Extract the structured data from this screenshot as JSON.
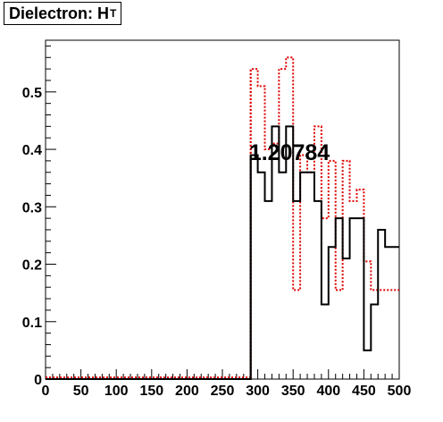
{
  "title": {
    "main": "Dielectron: H",
    "sub": "T"
  },
  "annotation": "1.20784",
  "colors": {
    "black_series": "#000000",
    "red_series": "#dd0000",
    "axes": "#000000",
    "background": "#ffffff"
  },
  "chart_data": {
    "type": "histogram",
    "title": "Dielectron: H_T",
    "xlabel": "",
    "ylabel": "",
    "xlim": [
      0,
      500
    ],
    "ylim": [
      0,
      0.59
    ],
    "grid": false,
    "bin_width": 10,
    "x_ticks": [
      0,
      50,
      100,
      150,
      200,
      250,
      300,
      350,
      400,
      450,
      500
    ],
    "x_tick_labels": [
      "0",
      "50",
      "100",
      "150",
      "200",
      "250",
      "300",
      "350",
      "400",
      "450",
      "500"
    ],
    "y_ticks": [
      0,
      0.1,
      0.2,
      0.3,
      0.4,
      0.5
    ],
    "y_tick_labels": [
      "0",
      "0.1",
      "0.2",
      "0.3",
      "0.4",
      "0.5"
    ],
    "annotations": [
      {
        "text": "1.20784",
        "x": 333,
        "y": 0.4
      }
    ],
    "series": [
      {
        "style": "solid",
        "color": "#000000",
        "bin_edges": [
          0,
          10,
          20,
          30,
          40,
          50,
          60,
          70,
          80,
          90,
          100,
          110,
          120,
          130,
          140,
          150,
          160,
          170,
          180,
          190,
          200,
          210,
          220,
          230,
          240,
          250,
          260,
          270,
          280,
          290,
          300,
          310,
          320,
          330,
          340,
          350,
          360,
          370,
          380,
          390,
          400,
          410,
          420,
          430,
          440,
          450,
          460,
          470,
          480,
          490,
          500
        ],
        "values": [
          0,
          0,
          0,
          0,
          0,
          0,
          0,
          0,
          0,
          0,
          0,
          0,
          0,
          0,
          0,
          0,
          0,
          0,
          0,
          0,
          0,
          0,
          0,
          0,
          0,
          0,
          0,
          0,
          0,
          0.39,
          0.36,
          0.31,
          0.44,
          0.36,
          0.44,
          0.31,
          0.36,
          0.36,
          0.31,
          0.13,
          0.23,
          0.28,
          0.21,
          0.28,
          0.28,
          0.05,
          0.13,
          0.26,
          0.23,
          0.23
        ]
      },
      {
        "style": "dotted",
        "color": "#dd0000",
        "bin_edges": [
          0,
          10,
          20,
          30,
          40,
          50,
          60,
          70,
          80,
          90,
          100,
          110,
          120,
          130,
          140,
          150,
          160,
          170,
          180,
          190,
          200,
          210,
          220,
          230,
          240,
          250,
          260,
          270,
          280,
          290,
          300,
          310,
          320,
          330,
          340,
          350,
          360,
          370,
          380,
          390,
          400,
          410,
          420,
          430,
          440,
          450,
          460,
          470,
          480,
          490,
          500
        ],
        "values": [
          0.003,
          0.003,
          0.003,
          0.003,
          0.003,
          0.003,
          0.003,
          0.003,
          0.003,
          0.003,
          0.003,
          0.003,
          0.003,
          0.003,
          0.003,
          0.003,
          0.003,
          0.003,
          0.003,
          0.003,
          0.003,
          0.003,
          0.003,
          0.003,
          0.003,
          0.003,
          0.003,
          0.003,
          0.003,
          0.54,
          0.51,
          0.4,
          0.41,
          0.54,
          0.56,
          0.155,
          0.39,
          0.36,
          0.44,
          0.28,
          0.38,
          0.155,
          0.38,
          0.31,
          0.33,
          0.205,
          0.155,
          0.155,
          0.155,
          0.155
        ]
      }
    ]
  }
}
